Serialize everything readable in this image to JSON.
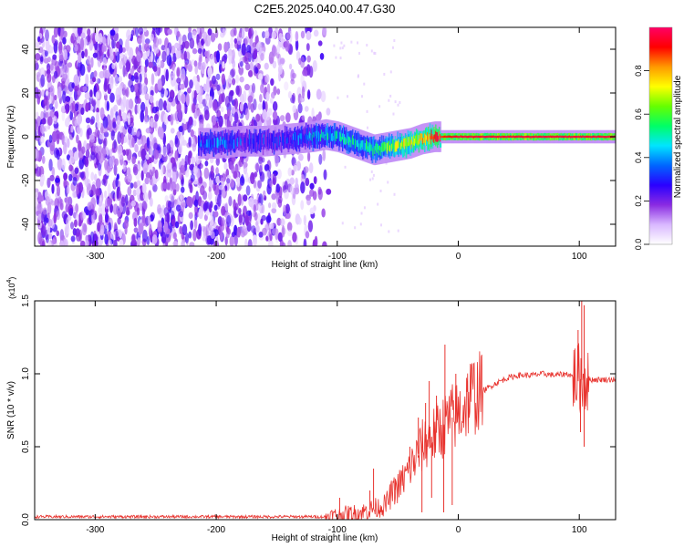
{
  "title": "C2E5.2025.040.00.47.G30",
  "chart_data": [
    {
      "type": "heatmap",
      "xlabel": "Height of straight line (km)",
      "ylabel": "Frequency (Hz)",
      "xlim": [
        -350,
        130
      ],
      "ylim": [
        -50,
        50
      ],
      "xticks": [
        -300,
        -200,
        -100,
        0,
        100
      ],
      "xtick_labels": [
        "-300",
        "-200",
        "-100",
        "0",
        "100"
      ],
      "yticks": [
        -40,
        -20,
        0,
        20,
        40
      ],
      "ytick_labels": [
        "-40",
        "-20",
        "0",
        "20",
        "40"
      ],
      "colorbar": {
        "label": "Normalized spectral amplitude",
        "range": [
          0,
          1
        ],
        "ticks": [
          0.0,
          0.2,
          0.4,
          0.6,
          0.8
        ],
        "tick_labels": [
          "0.0",
          "0.2",
          "0.4",
          "0.6",
          "0.8"
        ],
        "colormap": [
          "#ffffff",
          "#d9b8ff",
          "#8a2be2",
          "#2a00ff",
          "#0066ff",
          "#00e5ff",
          "#00ff66",
          "#66ff00",
          "#ffff00",
          "#ff9900",
          "#ff0000",
          "#ff0066"
        ]
      },
      "ridge": {
        "x": [
          -200,
          -180,
          -160,
          -140,
          -120,
          -110,
          -100,
          -90,
          -80,
          -70,
          -60,
          -50,
          -40,
          -30,
          -20,
          -10,
          0,
          50,
          100,
          130
        ],
        "y": [
          -3,
          -2,
          -2,
          -1,
          0,
          1,
          0,
          -2,
          -4,
          -6,
          -5,
          -4,
          -3,
          -1,
          0,
          0,
          0,
          0,
          0,
          0
        ],
        "amplitude": [
          0.35,
          0.3,
          0.3,
          0.3,
          0.4,
          0.45,
          0.45,
          0.5,
          0.45,
          0.5,
          0.6,
          0.65,
          0.7,
          0.8,
          0.85,
          0.9,
          0.95,
          0.95,
          0.95,
          0.95
        ]
      },
      "noise_extent_x": [
        -350,
        -105
      ],
      "grid": false
    },
    {
      "type": "line",
      "xlabel": "Height of straight line (km)",
      "ylabel": "SNR (10 * v/v)",
      "y_multiplier_label": "(x10",
      "y_multiplier_exponent": "4",
      "y_multiplier_close": ")",
      "xlim": [
        -350,
        130
      ],
      "ylim": [
        0,
        1.5
      ],
      "xticks": [
        -300,
        -200,
        -100,
        0,
        100
      ],
      "xtick_labels": [
        "-300",
        "-200",
        "-100",
        "0",
        "100"
      ],
      "yticks": [
        0.0,
        0.5,
        1.0,
        1.5
      ],
      "ytick_labels": [
        "0.0",
        "0.5",
        "1.0",
        "1.5"
      ],
      "color": "#e8332e",
      "series": [
        {
          "x": [
            -350,
            -300,
            -250,
            -200,
            -150,
            -110,
            -100,
            -80,
            -60,
            -55,
            -50,
            -45,
            -40,
            -35,
            -30,
            -25,
            -20,
            -15,
            -10,
            -5,
            0,
            5,
            10,
            20,
            30,
            40,
            50,
            60,
            70,
            80,
            90,
            95,
            100,
            103,
            105,
            110,
            120,
            130
          ],
          "y": [
            0.02,
            0.02,
            0.02,
            0.02,
            0.02,
            0.02,
            0.03,
            0.05,
            0.1,
            0.18,
            0.22,
            0.28,
            0.35,
            0.42,
            0.5,
            0.55,
            0.58,
            0.62,
            0.66,
            0.7,
            0.72,
            0.78,
            0.85,
            0.88,
            0.93,
            0.97,
            0.99,
            0.99,
            1.0,
            0.99,
            1.0,
            0.98,
            0.97,
            0.95,
            0.97,
            0.96,
            0.96,
            0.96
          ]
        }
      ],
      "spikes": [
        {
          "x": -98,
          "y": 0.15
        },
        {
          "x": -73,
          "y": 0.2
        },
        {
          "x": -70,
          "y": 0.35
        },
        {
          "x": -52,
          "y": 0.28
        },
        {
          "x": -40,
          "y": 0.5
        },
        {
          "x": -33,
          "y": 0.7
        },
        {
          "x": -27,
          "y": 0.8
        },
        {
          "x": -24,
          "y": 0.95
        },
        {
          "x": -18,
          "y": 0.85
        },
        {
          "x": -11,
          "y": 1.2
        },
        {
          "x": -2,
          "y": 1.0
        },
        {
          "x": 99,
          "y": 1.3
        },
        {
          "x": 102,
          "y": 1.5
        },
        {
          "x": 104,
          "y": 1.47
        }
      ],
      "dips": [
        {
          "x": -30,
          "y": 0.05
        },
        {
          "x": -22,
          "y": 0.15
        },
        {
          "x": -12,
          "y": 0.05
        },
        {
          "x": -5,
          "y": 0.1
        },
        {
          "x": 101,
          "y": 0.6
        },
        {
          "x": 104,
          "y": 0.5
        }
      ],
      "grid": false
    }
  ]
}
